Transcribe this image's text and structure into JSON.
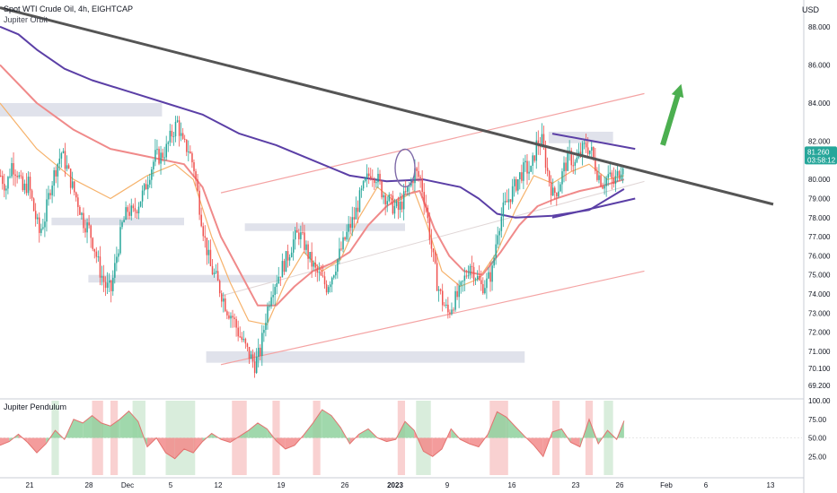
{
  "header": {
    "symbol_line": "Spot WTI Crude Oil, 4h, EIGHTCAP",
    "indicator_line": "Jupiter Orbit",
    "currency": "USD"
  },
  "sub_panel": {
    "title": "Jupiter Pendulum"
  },
  "price_label": {
    "value": "81.260",
    "countdown": "03:58:12"
  },
  "colors": {
    "up_candle": "#26a69a",
    "down_candle": "#ef5350",
    "ma_purple": "#5b3fa6",
    "ma_pink": "#f08a8a",
    "ma_orange": "#f6b26b",
    "trendline": "#555555",
    "channel": "#f4a3a3",
    "zone": "#d8dbe6",
    "arrow": "#4caf50"
  },
  "chart_data": [
    {
      "type": "candlestick",
      "title": "Spot WTI Crude Oil, 4h, EIGHTCAP",
      "ylim": [
        68.6,
        89.4
      ],
      "y_ticks": [
        "88.000",
        "86.000",
        "84.000",
        "82.000",
        "80.000",
        "79.000",
        "78.000",
        "77.000",
        "76.000",
        "75.000",
        "74.000",
        "73.000",
        "72.000",
        "71.000",
        "70.100",
        "69.200"
      ],
      "x_ticks": [
        "21",
        "28",
        "Dec",
        "5",
        "12",
        "19",
        "26",
        "2023",
        "9",
        "16",
        "23",
        "26",
        "Feb",
        "6",
        "13"
      ],
      "last_price": 81.26,
      "overlays": [
        "Jupiter Orbit"
      ],
      "price_path": [
        [
          0,
          80.2
        ],
        [
          3,
          79.6
        ],
        [
          6,
          80.8
        ],
        [
          9,
          80.4
        ],
        [
          12,
          79.4
        ],
        [
          15,
          79.8
        ],
        [
          18,
          78.4
        ],
        [
          21,
          77.2
        ],
        [
          24,
          78.0
        ],
        [
          27,
          79.6
        ],
        [
          30,
          80.6
        ],
        [
          33,
          81.4
        ],
        [
          36,
          80.6
        ],
        [
          39,
          79.6
        ],
        [
          42,
          78.8
        ],
        [
          45,
          77.8
        ],
        [
          48,
          77.4
        ],
        [
          51,
          76.4
        ],
        [
          54,
          75.2
        ],
        [
          57,
          74.4
        ],
        [
          60,
          74.2
        ],
        [
          63,
          76.0
        ],
        [
          66,
          77.6
        ],
        [
          69,
          78.4
        ],
        [
          72,
          78.2
        ],
        [
          75,
          78.8
        ],
        [
          78,
          79.4
        ],
        [
          81,
          80.4
        ],
        [
          84,
          81.2
        ],
        [
          87,
          81.2
        ],
        [
          90,
          81.6
        ],
        [
          93,
          82.4
        ],
        [
          96,
          83.0
        ],
        [
          99,
          81.8
        ],
        [
          102,
          81.6
        ],
        [
          105,
          80.6
        ],
        [
          108,
          78.6
        ],
        [
          111,
          76.8
        ],
        [
          114,
          75.4
        ],
        [
          117,
          74.8
        ],
        [
          120,
          74.0
        ],
        [
          123,
          73.2
        ],
        [
          126,
          72.8
        ],
        [
          129,
          72.0
        ],
        [
          132,
          71.4
        ],
        [
          135,
          70.8
        ],
        [
          138,
          70.3
        ],
        [
          141,
          71.0
        ],
        [
          144,
          72.8
        ],
        [
          147,
          74.2
        ],
        [
          150,
          74.8
        ],
        [
          153,
          75.4
        ],
        [
          156,
          76.0
        ],
        [
          159,
          76.8
        ],
        [
          162,
          77.2
        ],
        [
          165,
          76.6
        ],
        [
          168,
          75.8
        ],
        [
          171,
          75.2
        ],
        [
          174,
          74.8
        ],
        [
          177,
          74.4
        ],
        [
          180,
          75.0
        ],
        [
          183,
          75.8
        ],
        [
          186,
          76.6
        ],
        [
          189,
          77.4
        ],
        [
          192,
          78.0
        ],
        [
          195,
          79.0
        ],
        [
          198,
          79.8
        ],
        [
          201,
          80.4
        ],
        [
          204,
          80.2
        ],
        [
          207,
          79.4
        ],
        [
          210,
          79.0
        ],
        [
          213,
          78.6
        ],
        [
          216,
          78.4
        ],
        [
          219,
          79.0
        ],
        [
          222,
          79.6
        ],
        [
          225,
          80.4
        ],
        [
          228,
          80.0
        ],
        [
          231,
          78.6
        ],
        [
          234,
          76.4
        ],
        [
          237,
          74.6
        ],
        [
          240,
          73.6
        ],
        [
          243,
          73.0
        ],
        [
          246,
          73.6
        ],
        [
          249,
          74.0
        ],
        [
          252,
          74.8
        ],
        [
          255,
          75.6
        ],
        [
          258,
          75.0
        ],
        [
          261,
          74.4
        ],
        [
          264,
          74.6
        ],
        [
          267,
          75.2
        ],
        [
          270,
          77.4
        ],
        [
          273,
          78.4
        ],
        [
          276,
          79.0
        ],
        [
          279,
          79.6
        ],
        [
          282,
          80.2
        ],
        [
          285,
          80.6
        ],
        [
          288,
          80.4
        ],
        [
          291,
          81.8
        ],
        [
          294,
          82.0
        ],
        [
          297,
          80.4
        ],
        [
          300,
          79.2
        ],
        [
          303,
          79.6
        ],
        [
          306,
          80.6
        ],
        [
          309,
          81.2
        ],
        [
          312,
          80.8
        ],
        [
          315,
          81.4
        ],
        [
          318,
          81.8
        ],
        [
          321,
          81.4
        ],
        [
          324,
          80.4
        ],
        [
          327,
          79.8
        ],
        [
          330,
          80.2
        ],
        [
          333,
          79.8
        ],
        [
          336,
          80.4
        ],
        [
          339,
          81.2
        ]
      ],
      "moving_averages": {
        "slow_purple": [
          [
            0,
            88.0
          ],
          [
            10,
            87.6
          ],
          [
            20,
            86.8
          ],
          [
            35,
            85.8
          ],
          [
            50,
            85.2
          ],
          [
            70,
            84.6
          ],
          [
            90,
            84.0
          ],
          [
            110,
            83.4
          ],
          [
            130,
            82.4
          ],
          [
            150,
            81.8
          ],
          [
            170,
            81.0
          ],
          [
            190,
            80.2
          ],
          [
            210,
            79.9
          ],
          [
            230,
            80.0
          ],
          [
            250,
            79.6
          ],
          [
            260,
            79.0
          ],
          [
            270,
            78.2
          ],
          [
            280,
            78.0
          ],
          [
            300,
            78.1
          ],
          [
            320,
            78.4
          ],
          [
            339,
            79.5
          ]
        ],
        "mid_pink": [
          [
            0,
            86.0
          ],
          [
            20,
            84.0
          ],
          [
            40,
            82.6
          ],
          [
            60,
            81.6
          ],
          [
            80,
            81.2
          ],
          [
            100,
            80.8
          ],
          [
            110,
            79.6
          ],
          [
            120,
            77.0
          ],
          [
            130,
            75.2
          ],
          [
            140,
            73.4
          ],
          [
            150,
            73.4
          ],
          [
            160,
            74.4
          ],
          [
            170,
            75.2
          ],
          [
            180,
            75.6
          ],
          [
            190,
            76.2
          ],
          [
            200,
            77.6
          ],
          [
            210,
            78.6
          ],
          [
            220,
            79.2
          ],
          [
            228,
            79.4
          ],
          [
            236,
            77.4
          ],
          [
            244,
            76.0
          ],
          [
            252,
            75.2
          ],
          [
            262,
            75.0
          ],
          [
            272,
            76.2
          ],
          [
            282,
            77.6
          ],
          [
            292,
            78.6
          ],
          [
            302,
            79.0
          ],
          [
            315,
            79.4
          ],
          [
            325,
            79.6
          ],
          [
            339,
            80.0
          ]
        ],
        "fast_orange": [
          [
            0,
            84.0
          ],
          [
            20,
            81.6
          ],
          [
            40,
            80.0
          ],
          [
            60,
            79.0
          ],
          [
            80,
            80.2
          ],
          [
            95,
            80.8
          ],
          [
            105,
            80.0
          ],
          [
            115,
            77.0
          ],
          [
            125,
            74.6
          ],
          [
            135,
            72.6
          ],
          [
            145,
            72.4
          ],
          [
            155,
            74.6
          ],
          [
            165,
            76.2
          ],
          [
            175,
            75.2
          ],
          [
            185,
            75.8
          ],
          [
            195,
            78.0
          ],
          [
            205,
            79.6
          ],
          [
            215,
            78.8
          ],
          [
            225,
            79.4
          ],
          [
            232,
            77.6
          ],
          [
            240,
            75.2
          ],
          [
            250,
            74.4
          ],
          [
            260,
            74.8
          ],
          [
            270,
            76.2
          ],
          [
            280,
            78.4
          ],
          [
            290,
            80.2
          ],
          [
            300,
            79.8
          ],
          [
            310,
            80.4
          ],
          [
            320,
            80.8
          ],
          [
            330,
            80.0
          ],
          [
            339,
            80.2
          ]
        ]
      },
      "drawings": {
        "trendline": [
          [
            0,
            89.0
          ],
          [
            420,
            78.7
          ]
        ],
        "channel_upper": [
          [
            120,
            79.3
          ],
          [
            350,
            84.5
          ]
        ],
        "channel_mid": [
          [
            120,
            73.9
          ],
          [
            350,
            79.9
          ]
        ],
        "channel_lower": [
          [
            120,
            70.3
          ],
          [
            350,
            75.2
          ]
        ],
        "triangle_upper": [
          [
            300,
            82.4
          ],
          [
            345,
            81.6
          ]
        ],
        "triangle_lower": [
          [
            300,
            78.0
          ],
          [
            345,
            79.0
          ]
        ],
        "zones": [
          {
            "x": [
              0,
              88
            ],
            "y": [
              83.3,
              84.0
            ]
          },
          {
            "x": [
              28,
              100
            ],
            "y": [
              77.6,
              78.0
            ]
          },
          {
            "x": [
              48,
              150
            ],
            "y": [
              74.6,
              75.0
            ]
          },
          {
            "x": [
              133,
              220
            ],
            "y": [
              77.3,
              77.7
            ]
          },
          {
            "x": [
              112,
              285
            ],
            "y": [
              70.4,
              71.0
            ]
          },
          {
            "x": [
              298,
              333
            ],
            "y": [
              81.9,
              82.5
            ]
          }
        ],
        "circle_center": [
          220,
          80.6
        ],
        "arrow": {
          "from": [
            360,
            81.8
          ],
          "to": [
            370,
            85.0
          ]
        }
      }
    },
    {
      "type": "area",
      "title": "Jupiter Pendulum",
      "ylim": [
        0,
        100
      ],
      "y_ticks": [
        "100.00",
        "75.00",
        "50.00",
        "25.00"
      ],
      "baseline": 50,
      "oscillator": [
        [
          0,
          40
        ],
        [
          5,
          45
        ],
        [
          10,
          55
        ],
        [
          15,
          44
        ],
        [
          20,
          30
        ],
        [
          25,
          42
        ],
        [
          30,
          60
        ],
        [
          35,
          48
        ],
        [
          40,
          75
        ],
        [
          45,
          70
        ],
        [
          50,
          80
        ],
        [
          55,
          70
        ],
        [
          60,
          66
        ],
        [
          65,
          75
        ],
        [
          70,
          86
        ],
        [
          75,
          72
        ],
        [
          80,
          38
        ],
        [
          85,
          50
        ],
        [
          90,
          30
        ],
        [
          95,
          22
        ],
        [
          100,
          35
        ],
        [
          105,
          30
        ],
        [
          110,
          45
        ],
        [
          115,
          56
        ],
        [
          120,
          48
        ],
        [
          125,
          44
        ],
        [
          130,
          52
        ],
        [
          135,
          60
        ],
        [
          140,
          70
        ],
        [
          145,
          62
        ],
        [
          150,
          46
        ],
        [
          155,
          35
        ],
        [
          160,
          40
        ],
        [
          165,
          54
        ],
        [
          170,
          70
        ],
        [
          175,
          88
        ],
        [
          180,
          80
        ],
        [
          185,
          64
        ],
        [
          190,
          42
        ],
        [
          195,
          55
        ],
        [
          200,
          62
        ],
        [
          205,
          50
        ],
        [
          210,
          45
        ],
        [
          215,
          48
        ],
        [
          220,
          72
        ],
        [
          225,
          60
        ],
        [
          230,
          32
        ],
        [
          235,
          25
        ],
        [
          240,
          35
        ],
        [
          245,
          62
        ],
        [
          250,
          48
        ],
        [
          255,
          42
        ],
        [
          260,
          38
        ],
        [
          265,
          55
        ],
        [
          270,
          85
        ],
        [
          275,
          78
        ],
        [
          280,
          65
        ],
        [
          285,
          52
        ],
        [
          290,
          40
        ],
        [
          295,
          25
        ],
        [
          300,
          58
        ],
        [
          305,
          62
        ],
        [
          310,
          44
        ],
        [
          315,
          38
        ],
        [
          320,
          75
        ],
        [
          325,
          42
        ],
        [
          330,
          60
        ],
        [
          335,
          48
        ],
        [
          339,
          73
        ]
      ],
      "highlight_bands": [
        {
          "x": [
            28,
            32
          ],
          "kind": "up"
        },
        {
          "x": [
            50,
            56
          ],
          "kind": "down"
        },
        {
          "x": [
            60,
            64
          ],
          "kind": "down"
        },
        {
          "x": [
            72,
            79
          ],
          "kind": "up"
        },
        {
          "x": [
            90,
            106
          ],
          "kind": "up"
        },
        {
          "x": [
            126,
            134
          ],
          "kind": "down"
        },
        {
          "x": [
            148,
            152
          ],
          "kind": "down"
        },
        {
          "x": [
            170,
            174
          ],
          "kind": "down"
        },
        {
          "x": [
            216,
            220
          ],
          "kind": "down"
        },
        {
          "x": [
            226,
            234
          ],
          "kind": "up"
        },
        {
          "x": [
            266,
            276
          ],
          "kind": "down"
        },
        {
          "x": [
            300,
            304
          ],
          "kind": "down"
        },
        {
          "x": [
            318,
            322
          ],
          "kind": "down"
        },
        {
          "x": [
            328,
            333
          ],
          "kind": "up"
        }
      ]
    }
  ]
}
